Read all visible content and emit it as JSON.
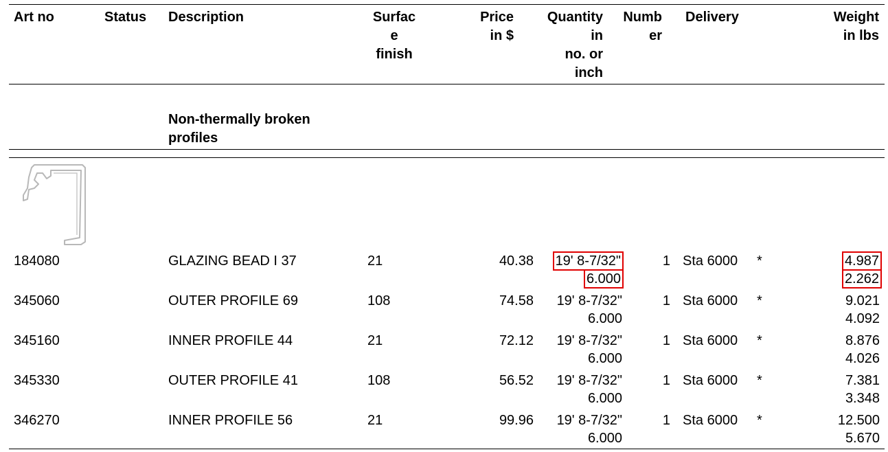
{
  "table": {
    "headers": [
      {
        "lines": [
          "Art no"
        ]
      },
      {
        "lines": [
          "Status"
        ]
      },
      {
        "lines": [
          "Description"
        ]
      },
      {
        "lines": [
          "Surfac",
          "e",
          "finish"
        ]
      },
      {
        "lines": [
          "Price",
          "in $"
        ]
      },
      {
        "lines": [
          "Quantity",
          "in",
          "no. or",
          "inch"
        ]
      },
      {
        "lines": [
          "Numb",
          "er"
        ]
      },
      {
        "lines": [
          "Delivery"
        ]
      },
      {
        "lines": [
          "Weight",
          "in lbs"
        ]
      }
    ],
    "section": {
      "lines": [
        "Non-thermally broken",
        "profiles"
      ]
    },
    "rows": [
      {
        "art_no": "184080",
        "description": "GLAZING BEAD I 37",
        "surface": "21",
        "price": "40.38",
        "quantity": [
          "19' 8-7/32\"",
          "6.000"
        ],
        "number": "1",
        "delivery": "Sta 6000",
        "mark": "*",
        "weight": [
          "4.987",
          "2.262"
        ]
      },
      {
        "art_no": "345060",
        "description": "OUTER PROFILE 69",
        "surface": "108",
        "price": "74.58",
        "quantity": [
          "19' 8-7/32\"",
          "6.000"
        ],
        "number": "1",
        "delivery": "Sta 6000",
        "mark": "*",
        "weight": [
          "9.021",
          "4.092"
        ]
      },
      {
        "art_no": "345160",
        "description": "INNER PROFILE 44",
        "surface": "21",
        "price": "72.12",
        "quantity": [
          "19' 8-7/32\"",
          "6.000"
        ],
        "number": "1",
        "delivery": "Sta 6000",
        "mark": "*",
        "weight": [
          "8.876",
          "4.026"
        ]
      },
      {
        "art_no": "345330",
        "description": "OUTER PROFILE 41",
        "surface": "108",
        "price": "56.52",
        "quantity": [
          "19' 8-7/32\"",
          "6.000"
        ],
        "number": "1",
        "delivery": "Sta 6000",
        "mark": "*",
        "weight": [
          "7.381",
          "3.348"
        ]
      },
      {
        "art_no": "346270",
        "description": "INNER PROFILE 56",
        "surface": "21",
        "price": "99.96",
        "quantity": [
          "19' 8-7/32\"",
          "6.000"
        ],
        "number": "1",
        "delivery": "Sta 6000",
        "mark": "*",
        "weight": [
          "12.500",
          "5.670"
        ]
      }
    ]
  }
}
